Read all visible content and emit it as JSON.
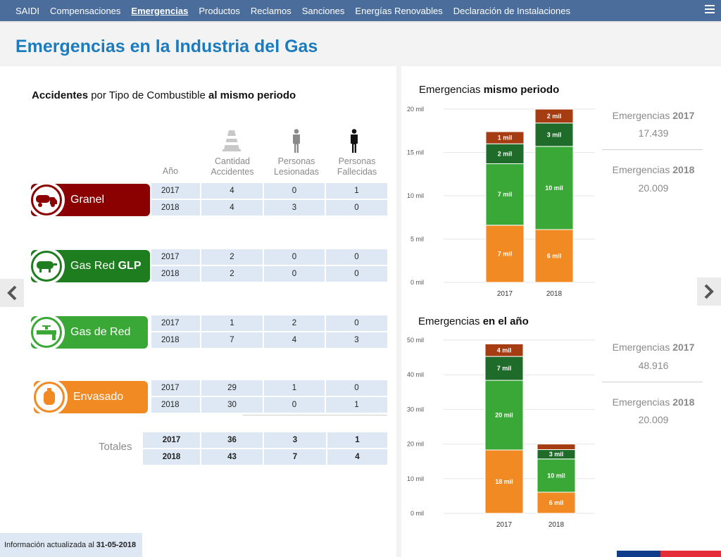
{
  "nav": {
    "items": [
      "SAIDI",
      "Compensaciones",
      "Emergencias",
      "Productos",
      "Reclamos",
      "Sanciones",
      "Energías Renovables",
      "Declaración de Instalaciones"
    ],
    "active": "Emergencias"
  },
  "page": {
    "title": "Emergencias en la Industria del Gas"
  },
  "accidents": {
    "title_bold1": "Accidentes",
    "title_mid": " por Tipo de Combustible ",
    "title_bold2": "al mismo periodo",
    "col_year": "Año",
    "col_accidents_1": "Cantidad",
    "col_accidents_2": "Accidentes",
    "col_injured_1": "Personas",
    "col_injured_2": "Lesionadas",
    "col_dead_1": "Personas",
    "col_dead_2": "Fallecidas",
    "fuels": [
      {
        "name": "Granel",
        "name_bold": "",
        "color": "#8b0000",
        "icon": "truck-icon",
        "rows": [
          {
            "year": "2017",
            "accidents": "4",
            "injured": "0",
            "dead": "1"
          },
          {
            "year": "2018",
            "accidents": "4",
            "injured": "3",
            "dead": "0"
          }
        ]
      },
      {
        "name": "Gas Red ",
        "name_bold": "GLP",
        "color": "#1e7d1e",
        "icon": "tank-icon",
        "rows": [
          {
            "year": "2017",
            "accidents": "2",
            "injured": "0",
            "dead": "0"
          },
          {
            "year": "2018",
            "accidents": "2",
            "injured": "0",
            "dead": "0"
          }
        ]
      },
      {
        "name": "Gas de Red",
        "name_bold": "",
        "color": "#3aa836",
        "icon": "pipe-valve-icon",
        "rows": [
          {
            "year": "2017",
            "accidents": "1",
            "injured": "2",
            "dead": "0"
          },
          {
            "year": "2018",
            "accidents": "7",
            "injured": "4",
            "dead": "3"
          }
        ]
      },
      {
        "name": "Envasado",
        "name_bold": "",
        "color": "#f28a24",
        "icon": "gas-cylinder-icon",
        "rows": [
          {
            "year": "2017",
            "accidents": "29",
            "injured": "1",
            "dead": "0"
          },
          {
            "year": "2018",
            "accidents": "30",
            "injured": "0",
            "dead": "1"
          }
        ]
      }
    ],
    "totals_label": "Totales",
    "totals": [
      {
        "year": "2017",
        "accidents": "36",
        "injured": "3",
        "dead": "1"
      },
      {
        "year": "2018",
        "accidents": "43",
        "injured": "7",
        "dead": "4"
      }
    ]
  },
  "footer": {
    "text": "Información actualizada al",
    "date": "31-05-2018"
  },
  "stats": {
    "same_period": [
      {
        "label": "Emergencias ",
        "year": "2017",
        "value": "17.439"
      },
      {
        "label": "Emergencias ",
        "year": "2018",
        "value": "20.009"
      }
    ],
    "year": [
      {
        "label": "Emergencias ",
        "year": "2017",
        "value": "48.916"
      },
      {
        "label": "Emergencias ",
        "year": "2018",
        "value": "20.009"
      }
    ]
  },
  "chart_data": [
    {
      "type": "bar",
      "stacked": true,
      "title_normal": "Emergencias ",
      "title_bold": "mismo periodo",
      "categories": [
        "2017",
        "2018"
      ],
      "ylim": [
        0,
        20
      ],
      "yticks": [
        "0 mil",
        "5 mil",
        "10 mil",
        "15 mil",
        "20 mil"
      ],
      "series": [
        {
          "color": "#f28a24",
          "values": [
            6.6,
            6.1
          ],
          "labels": [
            "7 mil",
            "6 mil"
          ]
        },
        {
          "color": "#3aa836",
          "values": [
            7.1,
            9.6
          ],
          "labels": [
            "7 mil",
            "10 mil"
          ]
        },
        {
          "color": "#1e6b2a",
          "values": [
            2.3,
            2.7
          ],
          "labels": [
            "2 mil",
            "3 mil"
          ]
        },
        {
          "color": "#a63c12",
          "values": [
            1.4,
            1.6
          ],
          "labels": [
            "1 mil",
            "2 mil"
          ]
        }
      ],
      "grid": true
    },
    {
      "type": "bar",
      "stacked": true,
      "title_normal": "Emergencias ",
      "title_bold": "en el año",
      "categories": [
        "2017",
        "2018"
      ],
      "ylim": [
        0,
        50
      ],
      "yticks": [
        "0 mil",
        "10 mil",
        "20 mil",
        "30 mil",
        "40 mil",
        "50 mil"
      ],
      "series": [
        {
          "color": "#f28a24",
          "values": [
            18.3,
            6.1
          ],
          "labels": [
            "18 mil",
            "6 mil"
          ]
        },
        {
          "color": "#3aa836",
          "values": [
            20.1,
            9.6
          ],
          "labels": [
            "20 mil",
            "10 mil"
          ]
        },
        {
          "color": "#1e6b2a",
          "values": [
            6.9,
            2.7
          ],
          "labels": [
            "7 mil",
            "3 mil"
          ]
        },
        {
          "color": "#a63c12",
          "values": [
            3.6,
            1.6
          ],
          "labels": [
            "4 mil",
            ""
          ]
        }
      ],
      "grid": true
    }
  ]
}
